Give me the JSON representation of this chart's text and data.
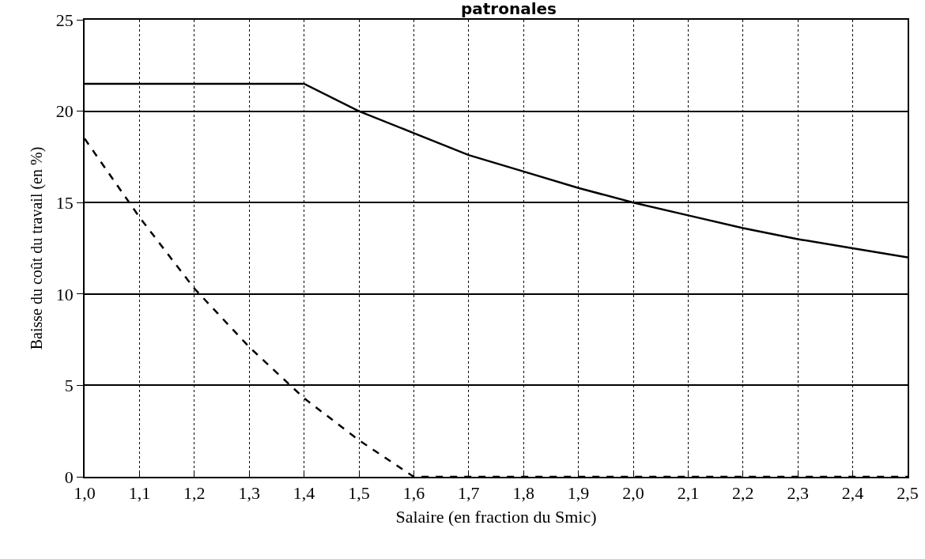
{
  "chart_data": {
    "type": "line",
    "title": "patronales",
    "xlabel": "Salaire (en fraction du Smic)",
    "ylabel": "Baisse du coût du travail (en %)",
    "x": [
      1.0,
      1.1,
      1.2,
      1.3,
      1.4,
      1.5,
      1.6,
      1.7,
      1.8,
      1.9,
      2.0,
      2.1,
      2.2,
      2.3,
      2.4,
      2.5
    ],
    "series": [
      {
        "color": "#000000",
        "line_style": "solid",
        "values": [
          21.5,
          21.5,
          21.5,
          21.5,
          21.5,
          20.0,
          18.8,
          17.6,
          16.7,
          15.8,
          15.0,
          14.3,
          13.6,
          13.0,
          12.5,
          12.0
        ]
      },
      {
        "color": "#000000",
        "line_style": "dashed",
        "values": [
          18.5,
          14.2,
          10.3,
          7.1,
          4.3,
          2.0,
          0,
          0,
          0,
          0,
          0,
          0,
          0,
          0,
          0,
          0
        ]
      }
    ],
    "xlim": [
      1.0,
      2.5
    ],
    "ylim": [
      0,
      25
    ],
    "xticks": [
      {
        "value": 1.0,
        "label": "1,0"
      },
      {
        "value": 1.1,
        "label": "1,1"
      },
      {
        "value": 1.2,
        "label": "1,2"
      },
      {
        "value": 1.3,
        "label": "1,3"
      },
      {
        "value": 1.4,
        "label": "1,4"
      },
      {
        "value": 1.5,
        "label": "1,5"
      },
      {
        "value": 1.6,
        "label": "1,6"
      },
      {
        "value": 1.7,
        "label": "1,7"
      },
      {
        "value": 1.8,
        "label": "1,8"
      },
      {
        "value": 1.9,
        "label": "1,9"
      },
      {
        "value": 2.0,
        "label": "2,0"
      },
      {
        "value": 2.1,
        "label": "2,1"
      },
      {
        "value": 2.2,
        "label": "2,2"
      },
      {
        "value": 2.3,
        "label": "2,3"
      },
      {
        "value": 2.4,
        "label": "2,4"
      },
      {
        "value": 2.5,
        "label": "2,5"
      }
    ],
    "yticks": [
      0,
      5,
      10,
      15,
      20,
      25
    ],
    "grid": true,
    "marker": "none"
  }
}
